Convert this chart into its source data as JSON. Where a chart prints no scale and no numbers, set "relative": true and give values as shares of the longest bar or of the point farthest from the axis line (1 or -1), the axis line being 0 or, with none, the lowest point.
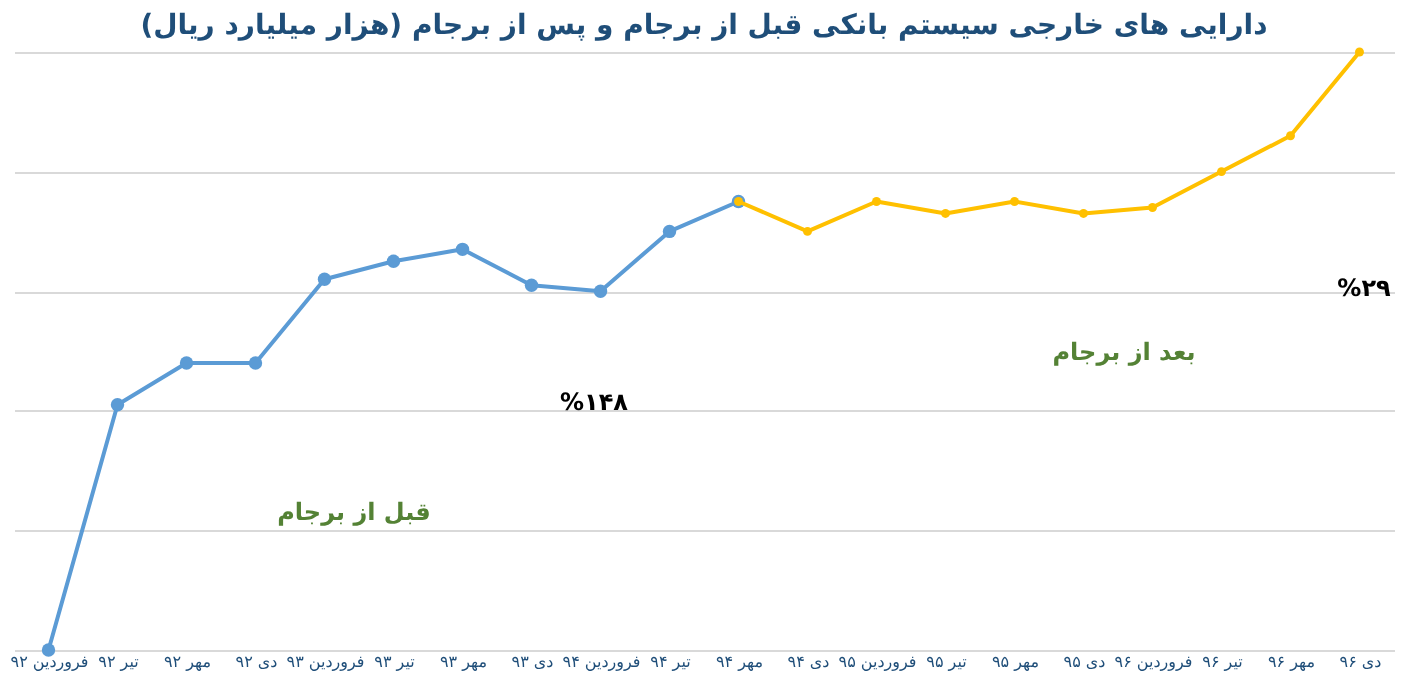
{
  "chart_data": {
    "type": "line",
    "title": "دارایی های خارجی سیستم بانکی قبل از برجام و پس از برجام (هزار میلیارد ریال)",
    "categories": [
      "فروردین ۹۲",
      "تیر ۹۲",
      "مهر ۹۲",
      "دی ۹۲",
      "فروردین ۹۳",
      "تیر ۹۳",
      "مهر ۹۳",
      "دی ۹۳",
      "فروردین ۹۴",
      "تیر ۹۴",
      "مهر ۹۴",
      "دی ۹۴",
      "فروردین ۹۵",
      "تیر ۹۵",
      "مهر ۹۵",
      "دی ۹۵",
      "فروردین ۹۶",
      "تیر ۹۶",
      "مهر ۹۶",
      "دی ۹۶"
    ],
    "relative": true,
    "series": [
      {
        "color": "#5b9bd5",
        "values": [
          0,
          0.41,
          0.48,
          0.48,
          0.62,
          0.65,
          0.67,
          0.61,
          0.6,
          0.7,
          0.75,
          null,
          null,
          null,
          null,
          null,
          null,
          null,
          null,
          null
        ]
      },
      {
        "color": "#ffc000",
        "values": [
          null,
          null,
          null,
          null,
          null,
          null,
          null,
          null,
          null,
          null,
          0.75,
          0.7,
          0.75,
          0.73,
          0.75,
          0.73,
          0.74,
          0.8,
          0.86,
          1
        ]
      }
    ],
    "annotations": [
      "قبل از برجام",
      "%۱۴۸",
      "بعد از برجام",
      "%۲۹"
    ],
    "marker": "circle",
    "line_style": "solid",
    "grid": "y"
  }
}
